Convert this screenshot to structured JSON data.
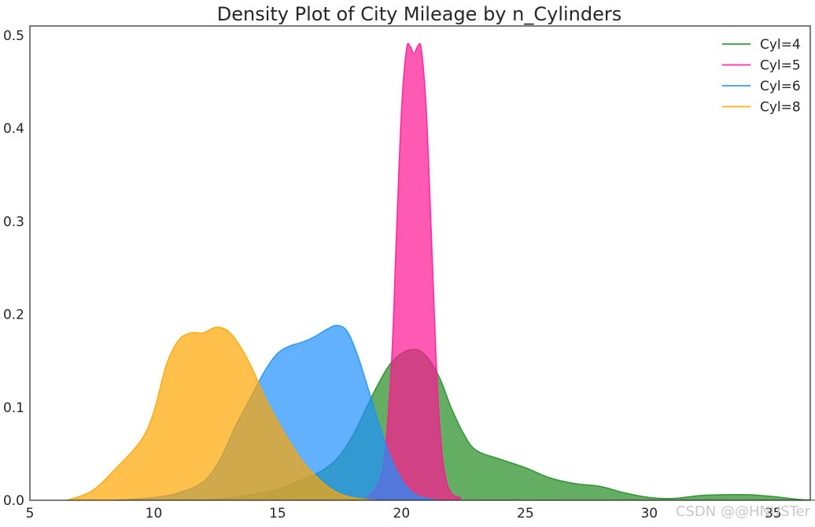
{
  "chart_data": {
    "type": "area",
    "title": "Density Plot of City Mileage by n_Cylinders",
    "xlabel": "",
    "ylabel": "",
    "xlim": [
      5,
      36.5
    ],
    "ylim": [
      0,
      0.51
    ],
    "xticks": [
      "5",
      "10",
      "15",
      "20",
      "25",
      "30",
      "35"
    ],
    "yticks": [
      "0.0",
      "0.1",
      "0.2",
      "0.3",
      "0.4",
      "0.5"
    ],
    "grid": false,
    "legend_position": "top-right",
    "series": [
      {
        "name": "Cyl=4",
        "color": "#228b22",
        "x": [
          12.0,
          13.5,
          15.0,
          16.0,
          16.8,
          17.4,
          18.0,
          18.5,
          19.0,
          19.5,
          20.0,
          20.4,
          20.8,
          21.2,
          21.6,
          22.0,
          22.5,
          23.0,
          24.0,
          25.0,
          26.0,
          27.0,
          28.0,
          29.0,
          30.0,
          31.0,
          32.0,
          33.0,
          34.0,
          35.0,
          36.0,
          36.8
        ],
        "y": [
          0.0,
          0.004,
          0.012,
          0.022,
          0.032,
          0.045,
          0.068,
          0.095,
          0.122,
          0.145,
          0.158,
          0.162,
          0.16,
          0.148,
          0.128,
          0.1,
          0.072,
          0.054,
          0.044,
          0.035,
          0.024,
          0.018,
          0.015,
          0.008,
          0.003,
          0.002,
          0.005,
          0.006,
          0.006,
          0.004,
          0.001,
          0.0
        ]
      },
      {
        "name": "Cyl=5",
        "color": "#ff1493",
        "x": [
          18.6,
          19.0,
          19.3,
          19.6,
          19.8,
          20.0,
          20.2,
          20.35,
          20.5,
          20.65,
          20.8,
          21.0,
          21.2,
          21.4,
          21.6,
          21.8,
          22.0,
          22.2,
          22.4
        ],
        "y": [
          0.003,
          0.015,
          0.045,
          0.15,
          0.29,
          0.42,
          0.485,
          0.488,
          0.48,
          0.488,
          0.485,
          0.42,
          0.29,
          0.15,
          0.06,
          0.022,
          0.008,
          0.004,
          0.003
        ]
      },
      {
        "name": "Cyl=6",
        "color": "#1e90ff",
        "x": [
          8.5,
          10.0,
          11.0,
          12.0,
          12.7,
          13.3,
          14.0,
          14.5,
          15.0,
          15.5,
          16.0,
          16.5,
          17.0,
          17.4,
          17.8,
          18.2,
          18.6,
          19.0,
          19.5,
          20.0,
          20.5,
          21.0,
          21.5
        ],
        "y": [
          0.0,
          0.003,
          0.008,
          0.02,
          0.045,
          0.08,
          0.115,
          0.14,
          0.158,
          0.166,
          0.17,
          0.176,
          0.184,
          0.188,
          0.182,
          0.158,
          0.125,
          0.09,
          0.05,
          0.022,
          0.007,
          0.002,
          0.0
        ]
      },
      {
        "name": "Cyl=8",
        "color": "#ffa500",
        "x": [
          6.5,
          7.5,
          8.5,
          9.5,
          10.0,
          10.5,
          11.0,
          11.5,
          12.0,
          12.5,
          13.0,
          13.5,
          14.0,
          14.5,
          15.0,
          15.5,
          16.0,
          16.5,
          17.0,
          17.5,
          18.0,
          18.5,
          19.0
        ],
        "y": [
          0.0,
          0.01,
          0.035,
          0.065,
          0.095,
          0.145,
          0.172,
          0.18,
          0.18,
          0.186,
          0.182,
          0.165,
          0.14,
          0.11,
          0.085,
          0.062,
          0.042,
          0.027,
          0.015,
          0.007,
          0.003,
          0.001,
          0.0
        ]
      }
    ]
  },
  "watermark": "CSDN @@HNUSTer"
}
